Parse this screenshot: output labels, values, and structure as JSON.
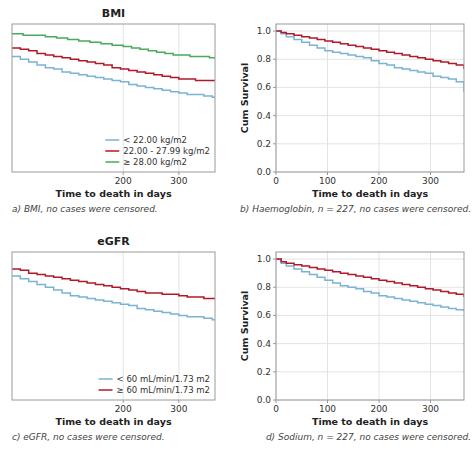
{
  "chart_data": [
    {
      "type": "step",
      "title": "BMI",
      "x_label": "Time to death in days",
      "caption": "a) BMI, no cases were censored.",
      "xlim": [
        0,
        365
      ],
      "ylim": [
        0.0,
        1.05
      ],
      "xticks": [
        200,
        300
      ],
      "yticks": [],
      "tick_labels": "x",
      "grid": true,
      "legend": "lower right",
      "series": [
        {
          "name": "< 22.00 kg/m2",
          "color": "#7ab3d4",
          "x": [
            0,
            15,
            30,
            45,
            60,
            75,
            90,
            105,
            120,
            135,
            150,
            165,
            180,
            195,
            210,
            225,
            240,
            255,
            270,
            285,
            300,
            315,
            330,
            345,
            360,
            365
          ],
          "values": [
            0.82,
            0.8,
            0.78,
            0.76,
            0.74,
            0.73,
            0.71,
            0.7,
            0.69,
            0.68,
            0.67,
            0.66,
            0.65,
            0.64,
            0.62,
            0.61,
            0.6,
            0.59,
            0.58,
            0.57,
            0.56,
            0.55,
            0.55,
            0.54,
            0.53,
            0.53
          ]
        },
        {
          "name": "22.00 - 27.99 kg/m2",
          "color": "#b2182b",
          "x": [
            0,
            15,
            30,
            45,
            60,
            75,
            90,
            105,
            120,
            135,
            150,
            165,
            180,
            195,
            210,
            225,
            240,
            255,
            270,
            285,
            300,
            315,
            330,
            345,
            360,
            365
          ],
          "values": [
            0.88,
            0.87,
            0.86,
            0.84,
            0.83,
            0.82,
            0.81,
            0.8,
            0.79,
            0.78,
            0.77,
            0.76,
            0.74,
            0.73,
            0.72,
            0.71,
            0.7,
            0.69,
            0.68,
            0.67,
            0.66,
            0.66,
            0.65,
            0.65,
            0.65,
            0.65
          ]
        },
        {
          "name": "≥ 28.00 kg/m2",
          "color": "#4aaa5c",
          "x": [
            0,
            20,
            40,
            60,
            80,
            100,
            120,
            140,
            160,
            180,
            200,
            215,
            230,
            245,
            260,
            275,
            290,
            305,
            320,
            340,
            355,
            365
          ],
          "values": [
            0.98,
            0.97,
            0.97,
            0.96,
            0.95,
            0.94,
            0.93,
            0.92,
            0.91,
            0.9,
            0.89,
            0.88,
            0.87,
            0.86,
            0.85,
            0.84,
            0.83,
            0.83,
            0.82,
            0.82,
            0.81,
            0.81
          ]
        }
      ]
    },
    {
      "type": "step",
      "x_label": "Time to death in days",
      "y_label": "Cum Survival",
      "caption": "b) Haemoglobin, n = 227, no cases were censored.",
      "xlim": [
        0,
        365
      ],
      "ylim": [
        0.0,
        1.05
      ],
      "xticks": [
        0,
        100,
        200,
        300
      ],
      "yticks": [
        {
          "value": 0,
          "label": "0.0"
        },
        0.2,
        0.4,
        0.6,
        0.8,
        {
          "value": 1,
          "label": "1.0"
        }
      ],
      "grid": true,
      "series": [
        {
          "color": "#7ab3d4",
          "x": [
            0,
            10,
            20,
            35,
            50,
            65,
            80,
            95,
            110,
            125,
            140,
            155,
            170,
            185,
            200,
            215,
            230,
            245,
            260,
            275,
            290,
            305,
            320,
            335,
            350,
            365
          ],
          "values": [
            1.0,
            0.98,
            0.96,
            0.94,
            0.92,
            0.9,
            0.88,
            0.86,
            0.85,
            0.84,
            0.83,
            0.82,
            0.81,
            0.79,
            0.77,
            0.76,
            0.74,
            0.73,
            0.72,
            0.71,
            0.7,
            0.68,
            0.67,
            0.66,
            0.64,
            0.57
          ]
        },
        {
          "color": "#b2182b",
          "x": [
            0,
            10,
            20,
            35,
            50,
            65,
            80,
            95,
            110,
            125,
            140,
            155,
            170,
            185,
            200,
            215,
            230,
            245,
            260,
            275,
            290,
            305,
            320,
            335,
            350,
            365
          ],
          "values": [
            1.0,
            0.99,
            0.98,
            0.97,
            0.96,
            0.95,
            0.94,
            0.93,
            0.92,
            0.91,
            0.9,
            0.89,
            0.88,
            0.87,
            0.86,
            0.85,
            0.84,
            0.83,
            0.82,
            0.81,
            0.8,
            0.79,
            0.78,
            0.77,
            0.76,
            0.73
          ]
        }
      ]
    },
    {
      "type": "step",
      "title": "eGFR",
      "x_label": "Time to death in days",
      "caption": "c) eGFR, no cases were censored.",
      "xlim": [
        0,
        365
      ],
      "ylim": [
        0.0,
        1.05
      ],
      "xticks": [
        200,
        300
      ],
      "yticks": [],
      "tick_labels": "x",
      "grid": true,
      "legend": "lower right",
      "series": [
        {
          "name": "< 60 mL/min/1.73 m2",
          "color": "#7ab3d4",
          "x": [
            0,
            15,
            30,
            45,
            60,
            75,
            90,
            105,
            120,
            135,
            150,
            165,
            180,
            195,
            210,
            225,
            240,
            255,
            270,
            285,
            300,
            315,
            330,
            345,
            360,
            365
          ],
          "values": [
            0.88,
            0.86,
            0.84,
            0.82,
            0.8,
            0.78,
            0.76,
            0.74,
            0.73,
            0.72,
            0.71,
            0.7,
            0.69,
            0.68,
            0.67,
            0.65,
            0.64,
            0.63,
            0.62,
            0.61,
            0.6,
            0.59,
            0.59,
            0.58,
            0.57,
            0.57
          ]
        },
        {
          "name": "≥ 60 mL/min/1.73 m2",
          "color": "#b2182b",
          "x": [
            0,
            15,
            30,
            45,
            60,
            75,
            90,
            105,
            120,
            135,
            150,
            165,
            180,
            195,
            210,
            225,
            240,
            255,
            270,
            285,
            300,
            315,
            330,
            345,
            360,
            365
          ],
          "values": [
            0.93,
            0.92,
            0.9,
            0.89,
            0.88,
            0.87,
            0.86,
            0.85,
            0.84,
            0.83,
            0.82,
            0.81,
            0.8,
            0.79,
            0.78,
            0.77,
            0.76,
            0.76,
            0.75,
            0.75,
            0.74,
            0.73,
            0.73,
            0.72,
            0.72,
            0.72
          ]
        }
      ]
    },
    {
      "type": "step",
      "x_label": "Time to death in days",
      "y_label": "Cum Survival",
      "caption": "d) Sodium, n = 227, no cases were censored.",
      "xlim": [
        0,
        365
      ],
      "ylim": [
        0.0,
        1.05
      ],
      "xticks": [
        0,
        100,
        200,
        300
      ],
      "yticks": [
        {
          "value": 0,
          "label": "0.0"
        },
        0.2,
        0.4,
        0.6,
        0.8,
        {
          "value": 1,
          "label": "1.0"
        }
      ],
      "grid": true,
      "series": [
        {
          "color": "#7ab3d4",
          "x": [
            0,
            10,
            20,
            35,
            50,
            65,
            80,
            95,
            110,
            125,
            140,
            155,
            170,
            185,
            200,
            215,
            230,
            245,
            260,
            275,
            290,
            305,
            320,
            335,
            350,
            365
          ],
          "values": [
            1.0,
            0.97,
            0.95,
            0.93,
            0.91,
            0.89,
            0.87,
            0.85,
            0.83,
            0.81,
            0.8,
            0.79,
            0.77,
            0.76,
            0.74,
            0.73,
            0.72,
            0.71,
            0.7,
            0.69,
            0.68,
            0.67,
            0.66,
            0.65,
            0.64,
            0.63
          ]
        },
        {
          "color": "#b2182b",
          "x": [
            0,
            10,
            20,
            35,
            50,
            65,
            80,
            95,
            110,
            125,
            140,
            155,
            170,
            185,
            200,
            215,
            230,
            245,
            260,
            275,
            290,
            305,
            320,
            335,
            350,
            365
          ],
          "values": [
            1.0,
            0.98,
            0.97,
            0.96,
            0.95,
            0.94,
            0.93,
            0.92,
            0.91,
            0.9,
            0.89,
            0.88,
            0.87,
            0.86,
            0.85,
            0.84,
            0.83,
            0.82,
            0.81,
            0.8,
            0.79,
            0.78,
            0.77,
            0.76,
            0.75,
            0.73
          ]
        }
      ]
    }
  ]
}
